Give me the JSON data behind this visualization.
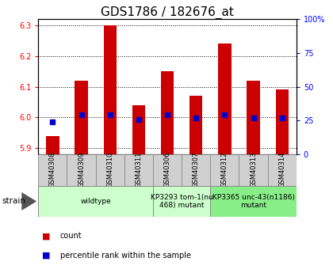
{
  "title": "GDS1786 / 182676_at",
  "samples": [
    "GSM40308",
    "GSM40309",
    "GSM40310",
    "GSM40311",
    "GSM40306",
    "GSM40307",
    "GSM40312",
    "GSM40313",
    "GSM40314"
  ],
  "counts": [
    5.94,
    6.12,
    6.3,
    6.04,
    6.15,
    6.07,
    6.24,
    6.12,
    6.09
  ],
  "percentiles": [
    24,
    29,
    29,
    26,
    29,
    27,
    29,
    27,
    27
  ],
  "ylim_left": [
    5.88,
    6.32
  ],
  "ylim_right": [
    0,
    100
  ],
  "yticks_left": [
    5.9,
    6.0,
    6.1,
    6.2,
    6.3
  ],
  "yticks_right": [
    0,
    25,
    50,
    75,
    100
  ],
  "bar_color": "#cc0000",
  "dot_color": "#0000cc",
  "bar_bottom": 5.88,
  "groups": [
    {
      "label": "wildtype",
      "start": 0,
      "end": 4,
      "color": "#ccffcc"
    },
    {
      "label": "KP3293 tom-1(nu\n468) mutant",
      "start": 4,
      "end": 6,
      "color": "#ccffcc"
    },
    {
      "label": "KP3365 unc-43(n1186)\nmutant",
      "start": 6,
      "end": 9,
      "color": "#88ee88"
    }
  ],
  "strain_label": "strain",
  "legend_items": [
    {
      "color": "#cc0000",
      "label": "count"
    },
    {
      "color": "#0000cc",
      "label": "percentile rank within the sample"
    }
  ],
  "title_fontsize": 11,
  "tick_fontsize": 7,
  "sample_fontsize": 6,
  "group_fontsize": 6.5,
  "legend_fontsize": 7
}
